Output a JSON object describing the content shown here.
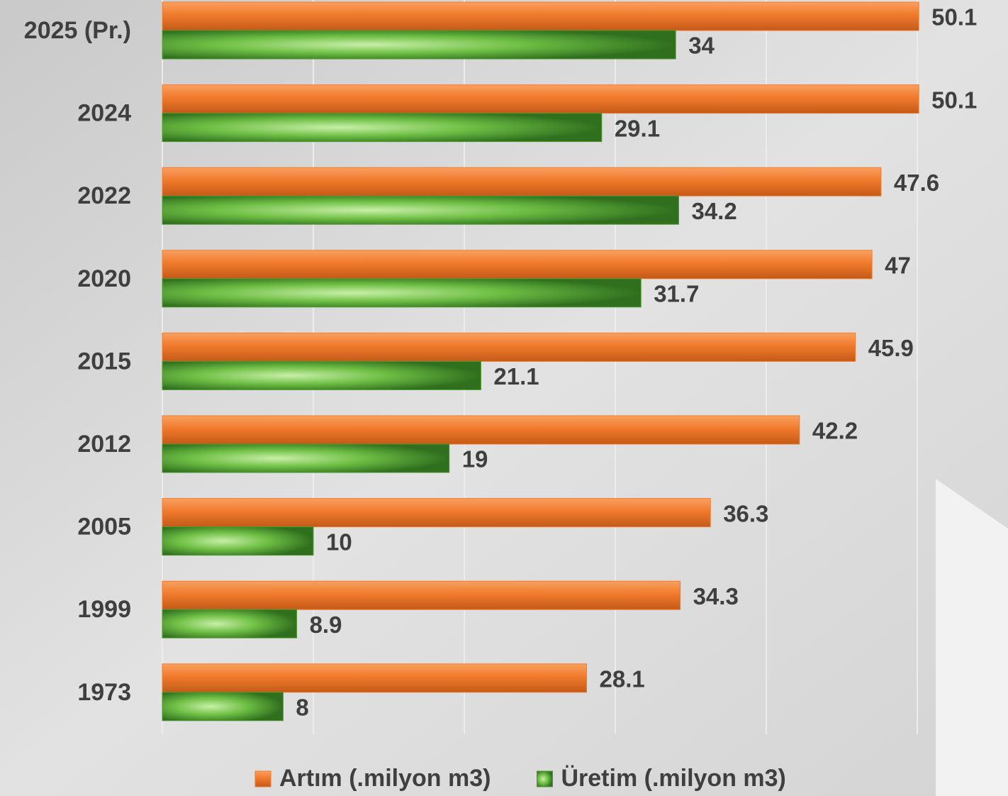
{
  "chart_data": {
    "type": "hbar",
    "categories": [
      "2025 (Pr.)",
      "2024",
      "2022",
      "2020",
      "2015",
      "2012",
      "2005",
      "1999",
      "1973"
    ],
    "series": [
      {
        "name": "Artım (.milyon m3)",
        "color": "#f07a2c",
        "values": [
          50.1,
          50.1,
          47.6,
          47,
          45.9,
          42.2,
          36.3,
          34.3,
          28.1
        ]
      },
      {
        "name": "Üretim (.milyon m3)",
        "color": "#4e9a2e",
        "values": [
          34,
          29.1,
          34.2,
          31.7,
          21.1,
          19,
          10,
          8.9,
          8
        ]
      }
    ],
    "xlim": [
      0,
      55
    ],
    "xticks": [
      0,
      10,
      20,
      30,
      40,
      50
    ],
    "grid": true,
    "legend": "bottom"
  }
}
